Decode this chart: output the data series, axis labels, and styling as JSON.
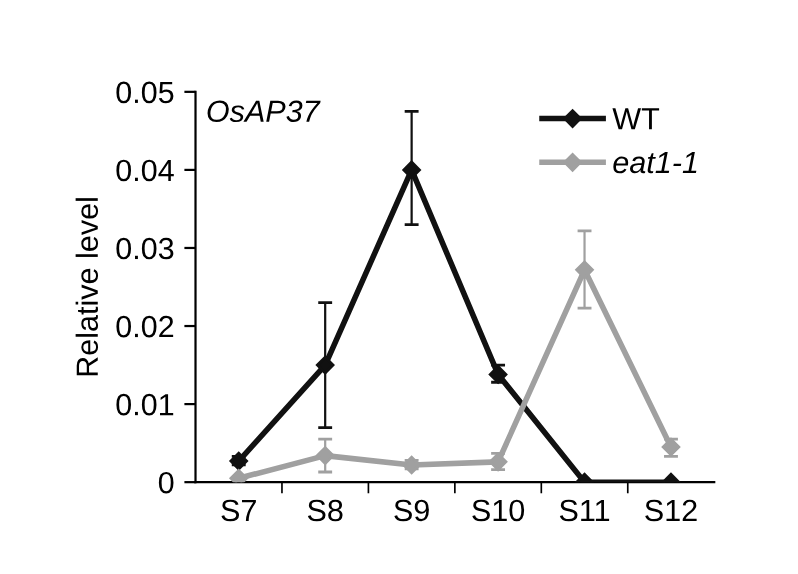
{
  "chart_data": {
    "type": "line",
    "ylabel": "Relative level",
    "annotations": [
      "OsAP37"
    ],
    "categories": [
      "S7",
      "S8",
      "S9",
      "S10",
      "S11",
      "S12"
    ],
    "series": [
      {
        "name": "WT",
        "color": "#111111",
        "values": [
          0.0027,
          0.015,
          0.04,
          0.0138,
          0,
          0
        ],
        "errors": [
          [
            0.0022,
            0.0033
          ],
          [
            0.007,
            0.023
          ],
          [
            0.033,
            0.0475
          ],
          [
            0.0128,
            0.015
          ],
          null,
          null
        ]
      },
      {
        "name": "eat1-1",
        "color": "#a0a0a0",
        "values": [
          0.0005,
          0.0034,
          0.0022,
          0.0026,
          0.0272,
          0.0045
        ],
        "errors": [
          null,
          [
            0.0013,
            0.0055
          ],
          [
            0.0017,
            0.0028
          ],
          [
            0.0016,
            0.0037
          ],
          [
            0.0223,
            0.0322
          ],
          [
            0.0033,
            0.0055
          ]
        ]
      }
    ],
    "ylim": [
      0,
      0.05
    ],
    "yticks": [
      {
        "value": 0,
        "label": "0"
      },
      0.01,
      0.02,
      0.03,
      0.04,
      0.05
    ],
    "legend": "top right",
    "marker": "diamond",
    "line_style": "solid",
    "grid": false
  }
}
